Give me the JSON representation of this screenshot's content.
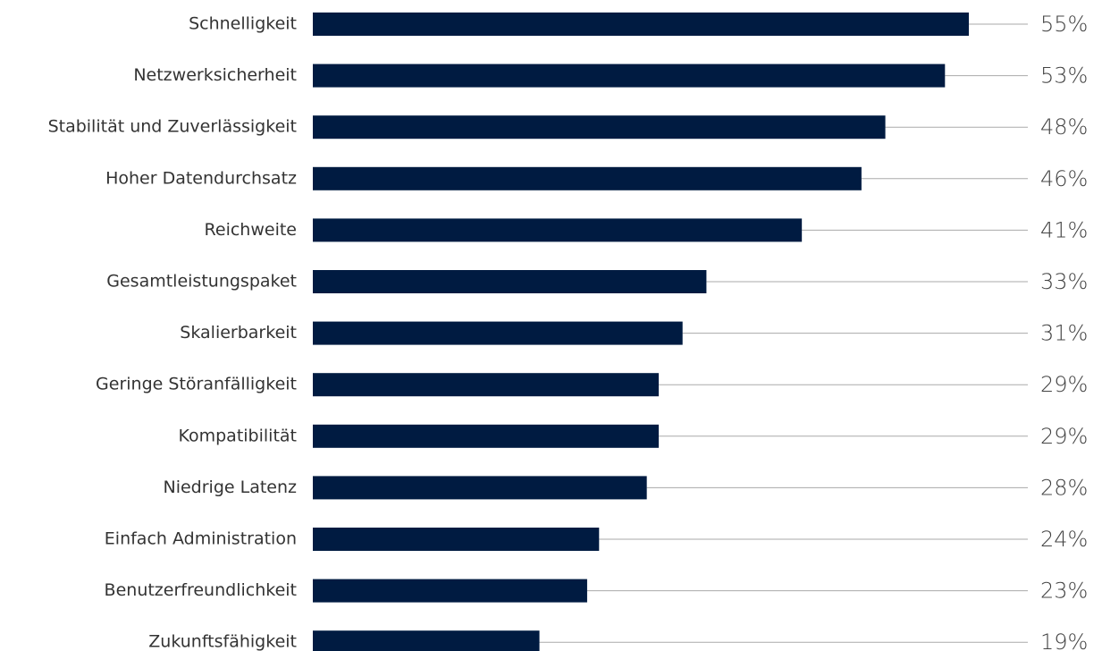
{
  "chart_data": {
    "type": "hbar",
    "categories": [
      "Schnelligkeit",
      "Netzwerksicherheit",
      "Stabilität und Zuverlässigkeit",
      "Hoher Datendurchsatz",
      "Reichweite",
      "Gesamtleistungspaket",
      "Skalierbarkeit",
      "Geringe Störanfälligkeit",
      "Kompatibilität",
      "Niedrige Latenz",
      "Einfach Administration",
      "Benutzerfreundlichkeit",
      "Zukunftsfähigkeit"
    ],
    "values": [
      55,
      53,
      48,
      46,
      41,
      33,
      31,
      29,
      29,
      28,
      24,
      23,
      19
    ],
    "value_labels": [
      "55%",
      "53%",
      "48%",
      "46%",
      "41%",
      "33%",
      "31%",
      "29%",
      "29%",
      "28%",
      "24%",
      "23%",
      "19%"
    ],
    "color": "#001b41"
  }
}
